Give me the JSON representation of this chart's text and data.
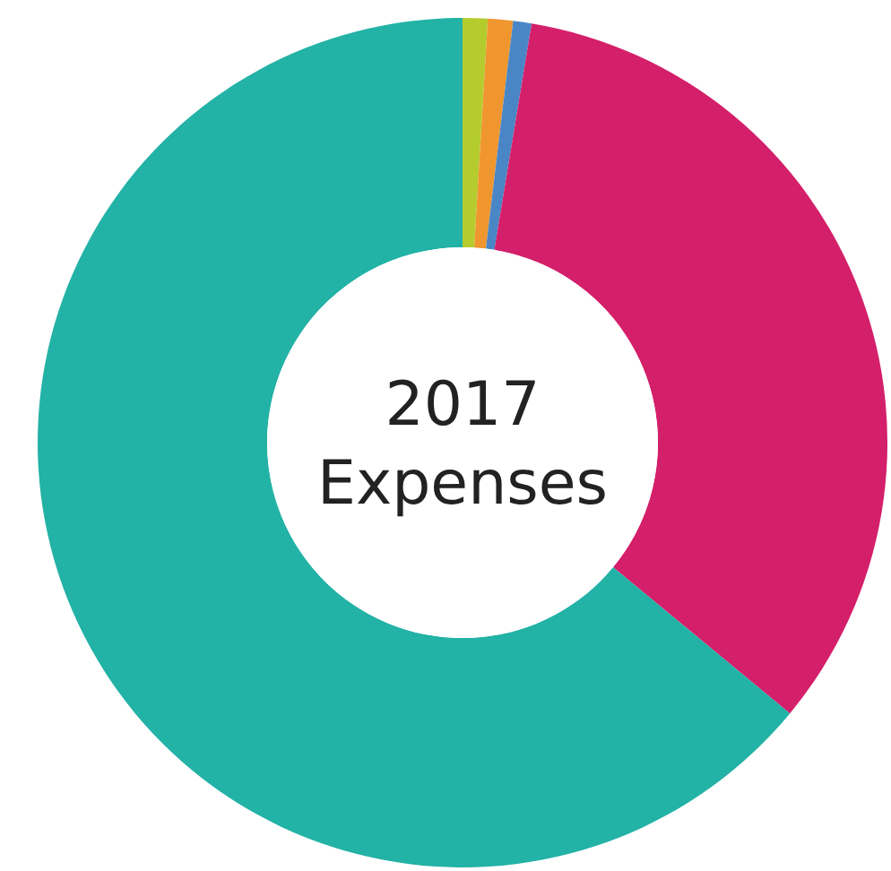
{
  "chart_data": {
    "type": "donut",
    "title": "2017 Expenses",
    "categories": [
      null,
      null,
      null,
      null,
      null
    ],
    "values": [
      0.95,
      0.95,
      0.7,
      33.4,
      64.0
    ],
    "colors": [
      "#b5cc2e",
      "#f0962e",
      "#4a86c5",
      "#d41f6a",
      "#22b2a6"
    ]
  }
}
